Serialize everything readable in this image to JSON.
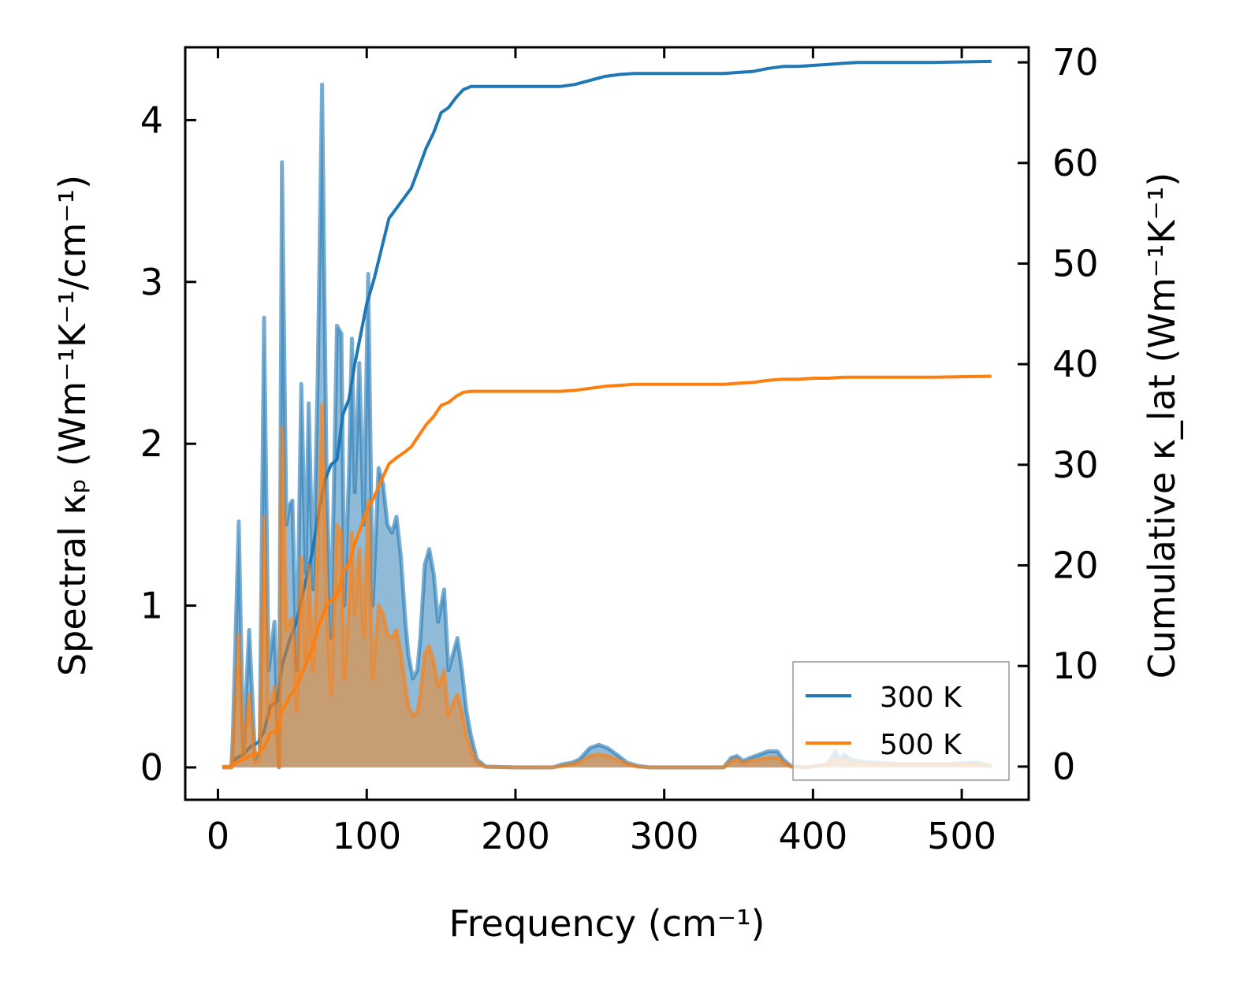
{
  "chart_data": {
    "type": "area",
    "xlabel": "Frequency (cm⁻¹)",
    "ylabel_left": "Spectral κₚ (Wm⁻¹K⁻¹/cm⁻¹)",
    "ylabel_right": "Cumulative κ_lat (Wm⁻¹K⁻¹)",
    "xlim": [
      -22,
      545
    ],
    "ylim_left": [
      -0.2,
      4.45
    ],
    "ylim_right": [
      -3.3,
      71.5
    ],
    "x_ticks": [
      "0",
      "100",
      "200",
      "300",
      "400",
      "500"
    ],
    "y_left_ticks": [
      "0",
      "1",
      "2",
      "3",
      "4"
    ],
    "y_right_ticks": [
      "0",
      "10",
      "20",
      "30",
      "40",
      "50",
      "60",
      "70"
    ],
    "legend": {
      "position": "lower-right",
      "entries": [
        "300 K",
        "500 K"
      ]
    },
    "grid": false,
    "series": [
      {
        "name": "300 K",
        "color": "#1f77b4",
        "spectral": [
          [
            3,
            0
          ],
          [
            9,
            0
          ],
          [
            10,
            0.2
          ],
          [
            14,
            1.52
          ],
          [
            17,
            0.1
          ],
          [
            21,
            0.85
          ],
          [
            25,
            0.05
          ],
          [
            28,
            0.1
          ],
          [
            31,
            2.78
          ],
          [
            34,
            0.6
          ],
          [
            38,
            0.9
          ],
          [
            41,
            0.0
          ],
          [
            43,
            3.74
          ],
          [
            46,
            1.5
          ],
          [
            48,
            1.62
          ],
          [
            50,
            1.65
          ],
          [
            53,
            0.6
          ],
          [
            56,
            2.37
          ],
          [
            59,
            1.2
          ],
          [
            61,
            2.25
          ],
          [
            64,
            1.1
          ],
          [
            67,
            2.4
          ],
          [
            70,
            4.22
          ],
          [
            73,
            1.8
          ],
          [
            76,
            0.8
          ],
          [
            80,
            2.73
          ],
          [
            83,
            2.68
          ],
          [
            85,
            1.0
          ],
          [
            88,
            1.8
          ],
          [
            90,
            2.65
          ],
          [
            92,
            1.7
          ],
          [
            95,
            2.5
          ],
          [
            98,
            1.5
          ],
          [
            101,
            3.05
          ],
          [
            104,
            1.0
          ],
          [
            108,
            1.85
          ],
          [
            111,
            1.75
          ],
          [
            114,
            1.5
          ],
          [
            117,
            1.45
          ],
          [
            120,
            1.55
          ],
          [
            123,
            1.3
          ],
          [
            126,
            0.9
          ],
          [
            128,
            0.7
          ],
          [
            131,
            0.55
          ],
          [
            134,
            0.6
          ],
          [
            136,
            0.8
          ],
          [
            139,
            1.25
          ],
          [
            142,
            1.35
          ],
          [
            145,
            1.2
          ],
          [
            148,
            0.9
          ],
          [
            152,
            1.1
          ],
          [
            155,
            0.6
          ],
          [
            158,
            0.7
          ],
          [
            161,
            0.8
          ],
          [
            164,
            0.6
          ],
          [
            167,
            0.35
          ],
          [
            170,
            0.2
          ],
          [
            174,
            0.05
          ],
          [
            180,
            0.005
          ],
          [
            200,
            0.0
          ],
          [
            225,
            0.0
          ],
          [
            232,
            0.02
          ],
          [
            238,
            0.03
          ],
          [
            243,
            0.05
          ],
          [
            250,
            0.12
          ],
          [
            256,
            0.14
          ],
          [
            262,
            0.12
          ],
          [
            268,
            0.08
          ],
          [
            275,
            0.03
          ],
          [
            282,
            0.01
          ],
          [
            290,
            0.0
          ],
          [
            340,
            0.0
          ],
          [
            345,
            0.06
          ],
          [
            349,
            0.07
          ],
          [
            353,
            0.04
          ],
          [
            358,
            0.06
          ],
          [
            364,
            0.08
          ],
          [
            370,
            0.1
          ],
          [
            376,
            0.1
          ],
          [
            380,
            0.05
          ],
          [
            385,
            0.01
          ],
          [
            395,
            0.0
          ],
          [
            410,
            0.02
          ],
          [
            415,
            0.1
          ],
          [
            418,
            0.05
          ],
          [
            421,
            0.08
          ],
          [
            425,
            0.05
          ],
          [
            430,
            0.04
          ],
          [
            440,
            0.03
          ],
          [
            460,
            0.02
          ],
          [
            490,
            0.02
          ],
          [
            510,
            0.03
          ],
          [
            520,
            0.01
          ]
        ],
        "cumulative": [
          [
            3,
            0
          ],
          [
            9,
            0
          ],
          [
            12,
            0.8
          ],
          [
            17,
            1.2
          ],
          [
            22,
            2.0
          ],
          [
            27,
            2.4
          ],
          [
            31,
            3.5
          ],
          [
            35,
            6.0
          ],
          [
            40,
            6.5
          ],
          [
            43,
            10.0
          ],
          [
            48,
            12.5
          ],
          [
            53,
            14.5
          ],
          [
            58,
            17.8
          ],
          [
            63,
            21.0
          ],
          [
            68,
            25.5
          ],
          [
            72,
            28.5
          ],
          [
            76,
            30.0
          ],
          [
            80,
            30.5
          ],
          [
            84,
            35.0
          ],
          [
            88,
            36.5
          ],
          [
            92,
            40.0
          ],
          [
            96,
            43.0
          ],
          [
            100,
            46.0
          ],
          [
            105,
            48.5
          ],
          [
            110,
            51.5
          ],
          [
            115,
            54.5
          ],
          [
            120,
            55.5
          ],
          [
            125,
            56.5
          ],
          [
            130,
            57.5
          ],
          [
            135,
            59.5
          ],
          [
            140,
            61.5
          ],
          [
            145,
            63.0
          ],
          [
            150,
            65.0
          ],
          [
            155,
            65.5
          ],
          [
            160,
            66.5
          ],
          [
            165,
            67.3
          ],
          [
            170,
            67.6
          ],
          [
            180,
            67.6
          ],
          [
            200,
            67.6
          ],
          [
            230,
            67.6
          ],
          [
            240,
            67.8
          ],
          [
            250,
            68.2
          ],
          [
            260,
            68.6
          ],
          [
            270,
            68.8
          ],
          [
            280,
            68.9
          ],
          [
            300,
            68.9
          ],
          [
            320,
            68.9
          ],
          [
            340,
            68.9
          ],
          [
            350,
            69.0
          ],
          [
            360,
            69.1
          ],
          [
            370,
            69.4
          ],
          [
            380,
            69.6
          ],
          [
            390,
            69.6
          ],
          [
            400,
            69.7
          ],
          [
            410,
            69.8
          ],
          [
            420,
            69.9
          ],
          [
            430,
            70.0
          ],
          [
            450,
            70.0
          ],
          [
            480,
            70.0
          ],
          [
            520,
            70.1
          ]
        ]
      },
      {
        "name": "500 K",
        "color": "#ff7f0e",
        "spectral": [
          [
            3,
            0
          ],
          [
            9,
            0
          ],
          [
            10,
            0.1
          ],
          [
            14,
            0.82
          ],
          [
            17,
            0.05
          ],
          [
            21,
            0.45
          ],
          [
            25,
            0.03
          ],
          [
            28,
            0.05
          ],
          [
            31,
            1.55
          ],
          [
            34,
            0.3
          ],
          [
            38,
            0.5
          ],
          [
            41,
            0.0
          ],
          [
            43,
            2.1
          ],
          [
            46,
            0.85
          ],
          [
            48,
            0.9
          ],
          [
            50,
            0.92
          ],
          [
            53,
            0.35
          ],
          [
            56,
            1.3
          ],
          [
            59,
            0.65
          ],
          [
            61,
            1.25
          ],
          [
            64,
            0.6
          ],
          [
            67,
            1.35
          ],
          [
            70,
            2.24
          ],
          [
            73,
            1.0
          ],
          [
            76,
            0.45
          ],
          [
            80,
            1.5
          ],
          [
            83,
            1.45
          ],
          [
            85,
            0.55
          ],
          [
            88,
            1.0
          ],
          [
            90,
            1.45
          ],
          [
            92,
            0.95
          ],
          [
            95,
            1.35
          ],
          [
            98,
            0.8
          ],
          [
            101,
            1.65
          ],
          [
            104,
            0.55
          ],
          [
            108,
            1.0
          ],
          [
            111,
            0.95
          ],
          [
            114,
            0.82
          ],
          [
            117,
            0.8
          ],
          [
            120,
            0.85
          ],
          [
            123,
            0.7
          ],
          [
            126,
            0.5
          ],
          [
            128,
            0.38
          ],
          [
            131,
            0.32
          ],
          [
            134,
            0.34
          ],
          [
            136,
            0.45
          ],
          [
            139,
            0.7
          ],
          [
            142,
            0.75
          ],
          [
            145,
            0.65
          ],
          [
            148,
            0.5
          ],
          [
            152,
            0.6
          ],
          [
            155,
            0.32
          ],
          [
            158,
            0.4
          ],
          [
            161,
            0.45
          ],
          [
            164,
            0.34
          ],
          [
            167,
            0.2
          ],
          [
            170,
            0.11
          ],
          [
            174,
            0.03
          ],
          [
            180,
            0.003
          ],
          [
            200,
            0.0
          ],
          [
            225,
            0.0
          ],
          [
            232,
            0.01
          ],
          [
            238,
            0.02
          ],
          [
            243,
            0.03
          ],
          [
            250,
            0.07
          ],
          [
            256,
            0.08
          ],
          [
            262,
            0.07
          ],
          [
            268,
            0.05
          ],
          [
            275,
            0.02
          ],
          [
            282,
            0.005
          ],
          [
            290,
            0.0
          ],
          [
            340,
            0.0
          ],
          [
            345,
            0.04
          ],
          [
            349,
            0.05
          ],
          [
            353,
            0.03
          ],
          [
            358,
            0.04
          ],
          [
            364,
            0.05
          ],
          [
            370,
            0.06
          ],
          [
            376,
            0.06
          ],
          [
            380,
            0.03
          ],
          [
            385,
            0.005
          ],
          [
            395,
            0.0
          ],
          [
            410,
            0.02
          ],
          [
            415,
            0.06
          ],
          [
            418,
            0.03
          ],
          [
            421,
            0.05
          ],
          [
            425,
            0.03
          ],
          [
            430,
            0.03
          ],
          [
            440,
            0.02
          ],
          [
            460,
            0.02
          ],
          [
            490,
            0.02
          ],
          [
            510,
            0.02
          ],
          [
            520,
            0.01
          ]
        ],
        "cumulative": [
          [
            3,
            0
          ],
          [
            9,
            0
          ],
          [
            12,
            0.4
          ],
          [
            17,
            0.7
          ],
          [
            22,
            1.1
          ],
          [
            27,
            1.3
          ],
          [
            31,
            1.9
          ],
          [
            35,
            3.3
          ],
          [
            40,
            3.6
          ],
          [
            43,
            5.5
          ],
          [
            48,
            6.9
          ],
          [
            53,
            8.0
          ],
          [
            58,
            9.8
          ],
          [
            63,
            11.6
          ],
          [
            68,
            14.1
          ],
          [
            72,
            15.7
          ],
          [
            76,
            16.6
          ],
          [
            80,
            16.9
          ],
          [
            84,
            19.3
          ],
          [
            88,
            20.2
          ],
          [
            92,
            22.1
          ],
          [
            96,
            23.8
          ],
          [
            100,
            25.4
          ],
          [
            105,
            26.8
          ],
          [
            110,
            28.5
          ],
          [
            115,
            30.1
          ],
          [
            120,
            30.7
          ],
          [
            125,
            31.2
          ],
          [
            130,
            31.8
          ],
          [
            135,
            32.9
          ],
          [
            140,
            34.0
          ],
          [
            145,
            34.8
          ],
          [
            150,
            35.9
          ],
          [
            155,
            36.2
          ],
          [
            160,
            36.8
          ],
          [
            165,
            37.2
          ],
          [
            170,
            37.3
          ],
          [
            180,
            37.3
          ],
          [
            200,
            37.3
          ],
          [
            230,
            37.3
          ],
          [
            240,
            37.4
          ],
          [
            250,
            37.6
          ],
          [
            260,
            37.8
          ],
          [
            270,
            37.9
          ],
          [
            280,
            38.0
          ],
          [
            300,
            38.0
          ],
          [
            320,
            38.0
          ],
          [
            340,
            38.0
          ],
          [
            350,
            38.1
          ],
          [
            360,
            38.2
          ],
          [
            370,
            38.4
          ],
          [
            380,
            38.5
          ],
          [
            390,
            38.5
          ],
          [
            400,
            38.6
          ],
          [
            410,
            38.6
          ],
          [
            420,
            38.7
          ],
          [
            430,
            38.7
          ],
          [
            450,
            38.7
          ],
          [
            480,
            38.7
          ],
          [
            520,
            38.8
          ]
        ]
      }
    ]
  }
}
